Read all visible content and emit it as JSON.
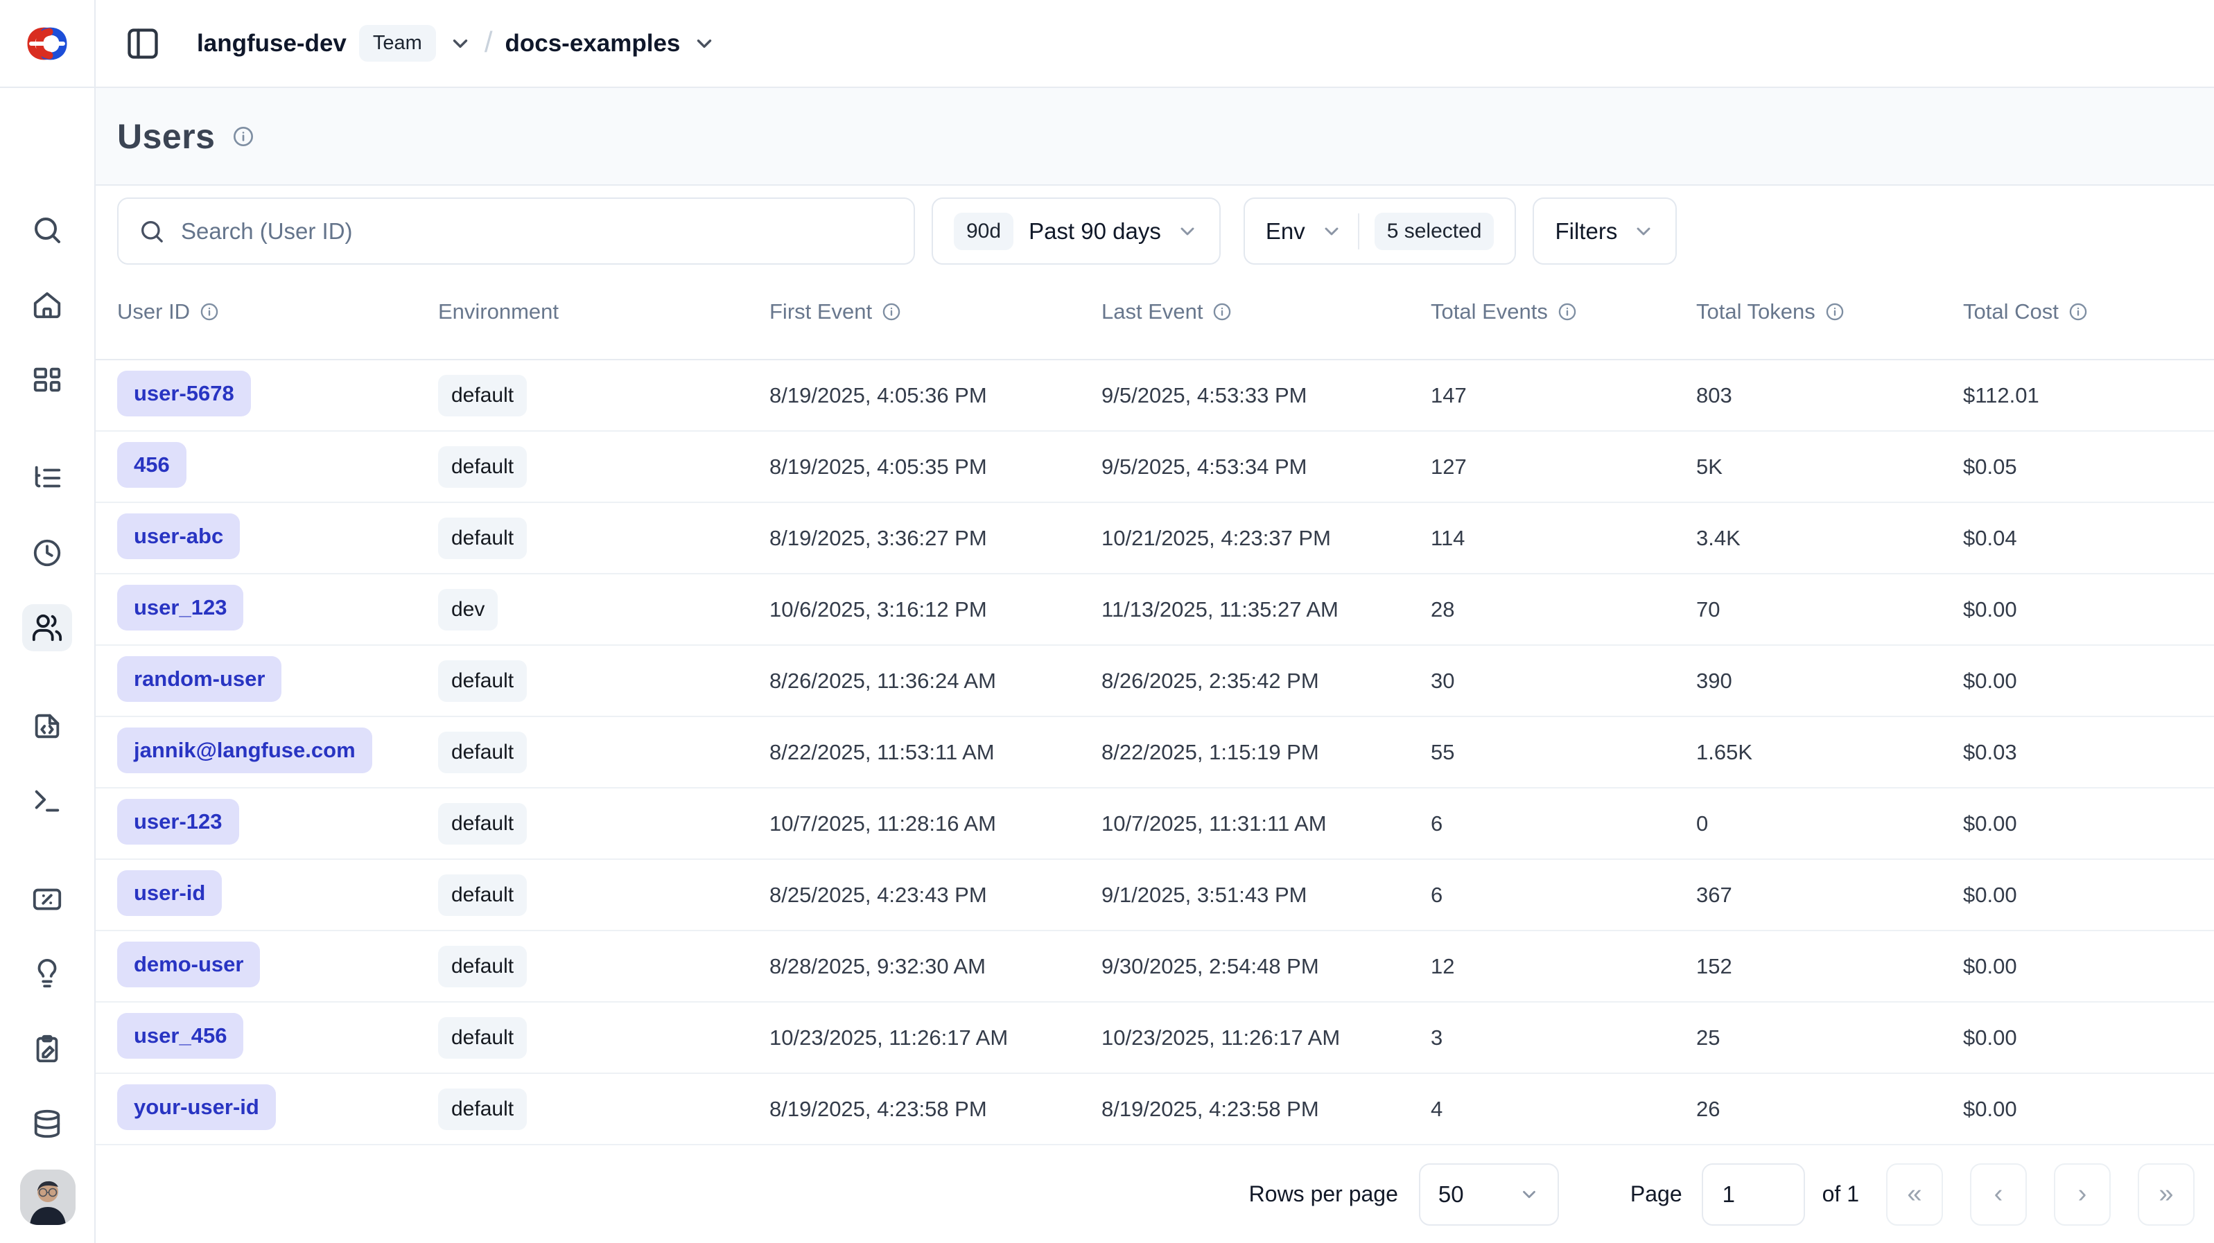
{
  "header": {
    "org_name": "langfuse-dev",
    "org_badge": "Team",
    "project_name": "docs-examples"
  },
  "page": {
    "title": "Users"
  },
  "filters": {
    "search_placeholder": "Search (User ID)",
    "date_badge": "90d",
    "date_label": "Past 90 days",
    "env_label": "Env",
    "env_selected": "5 selected",
    "filters_label": "Filters"
  },
  "sidebar": {
    "items": [
      "search",
      "home",
      "dashboards",
      "tracing",
      "sessions",
      "users",
      "prompts",
      "playground",
      "scores",
      "annotations",
      "evaluation",
      "datasets"
    ],
    "active_item": "users"
  },
  "table": {
    "columns": [
      {
        "label": "User ID",
        "info": true
      },
      {
        "label": "Environment",
        "info": false
      },
      {
        "label": "First Event",
        "info": true
      },
      {
        "label": "Last Event",
        "info": true
      },
      {
        "label": "Total Events",
        "info": true
      },
      {
        "label": "Total Tokens",
        "info": true
      },
      {
        "label": "Total Cost",
        "info": true
      }
    ],
    "rows": [
      {
        "user_id": "user-5678",
        "environment": "default",
        "first_event": "8/19/2025, 4:05:36 PM",
        "last_event": "9/5/2025, 4:53:33 PM",
        "total_events": "147",
        "total_tokens": "803",
        "total_cost": "$112.01"
      },
      {
        "user_id": "456",
        "environment": "default",
        "first_event": "8/19/2025, 4:05:35 PM",
        "last_event": "9/5/2025, 4:53:34 PM",
        "total_events": "127",
        "total_tokens": "5K",
        "total_cost": "$0.05"
      },
      {
        "user_id": "user-abc",
        "environment": "default",
        "first_event": "8/19/2025, 3:36:27 PM",
        "last_event": "10/21/2025, 4:23:37 PM",
        "total_events": "114",
        "total_tokens": "3.4K",
        "total_cost": "$0.04"
      },
      {
        "user_id": "user_123",
        "environment": "dev",
        "first_event": "10/6/2025, 3:16:12 PM",
        "last_event": "11/13/2025, 11:35:27 AM",
        "total_events": "28",
        "total_tokens": "70",
        "total_cost": "$0.00"
      },
      {
        "user_id": "random-user",
        "environment": "default",
        "first_event": "8/26/2025, 11:36:24 AM",
        "last_event": "8/26/2025, 2:35:42 PM",
        "total_events": "30",
        "total_tokens": "390",
        "total_cost": "$0.00"
      },
      {
        "user_id": "jannik@langfuse.com",
        "environment": "default",
        "first_event": "8/22/2025, 11:53:11 AM",
        "last_event": "8/22/2025, 1:15:19 PM",
        "total_events": "55",
        "total_tokens": "1.65K",
        "total_cost": "$0.03"
      },
      {
        "user_id": "user-123",
        "environment": "default",
        "first_event": "10/7/2025, 11:28:16 AM",
        "last_event": "10/7/2025, 11:31:11 AM",
        "total_events": "6",
        "total_tokens": "0",
        "total_cost": "$0.00"
      },
      {
        "user_id": "user-id",
        "environment": "default",
        "first_event": "8/25/2025, 4:23:43 PM",
        "last_event": "9/1/2025, 3:51:43 PM",
        "total_events": "6",
        "total_tokens": "367",
        "total_cost": "$0.00"
      },
      {
        "user_id": "demo-user",
        "environment": "default",
        "first_event": "8/28/2025, 9:32:30 AM",
        "last_event": "9/30/2025, 2:54:48 PM",
        "total_events": "12",
        "total_tokens": "152",
        "total_cost": "$0.00"
      },
      {
        "user_id": "user_456",
        "environment": "default",
        "first_event": "10/23/2025, 11:26:17 AM",
        "last_event": "10/23/2025, 11:26:17 AM",
        "total_events": "3",
        "total_tokens": "25",
        "total_cost": "$0.00"
      },
      {
        "user_id": "your-user-id",
        "environment": "default",
        "first_event": "8/19/2025, 4:23:58 PM",
        "last_event": "8/19/2025, 4:23:58 PM",
        "total_events": "4",
        "total_tokens": "26",
        "total_cost": "$0.00"
      }
    ]
  },
  "pagination": {
    "rows_per_page_label": "Rows per page",
    "rows_per_page_value": "50",
    "page_label": "Page",
    "page_value": "1",
    "of_label": "of 1",
    "first_icon": "«",
    "prev_icon": "‹",
    "next_icon": "›",
    "last_icon": "»"
  },
  "colors": {
    "user_badge_bg": "#dfe0fb",
    "user_badge_text": "#2834c2",
    "gray_badge_bg": "#f1f5f9",
    "border": "#e7ebf1",
    "title_strip_bg": "#f8fafc",
    "logo_red": "#d92d20",
    "logo_blue": "#1d4ed8"
  }
}
